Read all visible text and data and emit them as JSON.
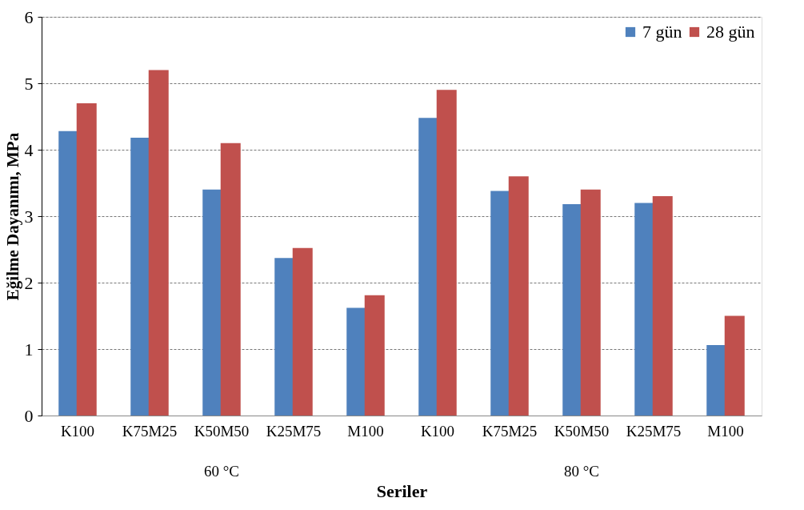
{
  "chart_data": {
    "type": "bar",
    "categories": [
      "K100",
      "K75M25",
      "K50M50",
      "K25M75",
      "M100",
      "K100",
      "K75M25",
      "K50M50",
      "K25M75",
      "M100"
    ],
    "series": [
      {
        "name": "7 gün",
        "color": "#4f81bd",
        "values": [
          4.28,
          4.18,
          3.4,
          2.37,
          1.62,
          4.48,
          3.38,
          3.18,
          3.2,
          1.06
        ]
      },
      {
        "name": "28 gün",
        "color": "#c0504d",
        "values": [
          4.7,
          5.2,
          4.1,
          2.52,
          1.81,
          4.9,
          3.6,
          3.4,
          3.3,
          1.5
        ]
      }
    ],
    "annotations": [
      "60 °C",
      "80 °C"
    ],
    "xlabel": "Seriler",
    "ylabel": "Eğilme  Dayanımı, MPa",
    "ylim": [
      0,
      6
    ],
    "yticks": [
      0,
      1,
      2,
      3,
      4,
      5,
      6
    ],
    "grid": "y",
    "legend": "top right"
  }
}
